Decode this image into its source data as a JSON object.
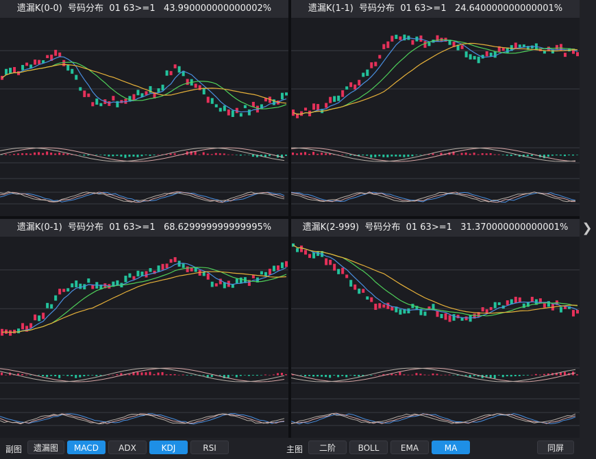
{
  "panels": [
    {
      "title": "遗漏K(0-0)  号码分布  01 63>=1   43.990000000000002%"
    },
    {
      "title": "遗漏K(1-1)  号码分布  01 63>=1   24.640000000000001%"
    },
    {
      "title": "遗漏K(0-1)  号码分布  01 63>=1   68.629999999999995%"
    },
    {
      "title": "遗漏K(2-999)  号码分布  01 63>=1   31.370000000000001%"
    }
  ],
  "toolbar": {
    "sub_label": "副图",
    "omission_label": "遗漏图",
    "sub_buttons": [
      "MACD",
      "ADX",
      "KDJ",
      "RSI"
    ],
    "sub_active": [
      "MACD",
      "KDJ"
    ],
    "main_label": "主图",
    "main_buttons": [
      "二阶",
      "BOLL",
      "EMA",
      "MA"
    ],
    "main_active": "MA",
    "same_screen_label": "同屏"
  },
  "side_arrow": "❯",
  "colors": {
    "up": "#e6315a",
    "down": "#23c29c",
    "ma_short": "#4a90e2",
    "ma_mid": "#4fd15a",
    "ma_long": "#e8b23a",
    "accent": "#1e8fe6"
  }
}
